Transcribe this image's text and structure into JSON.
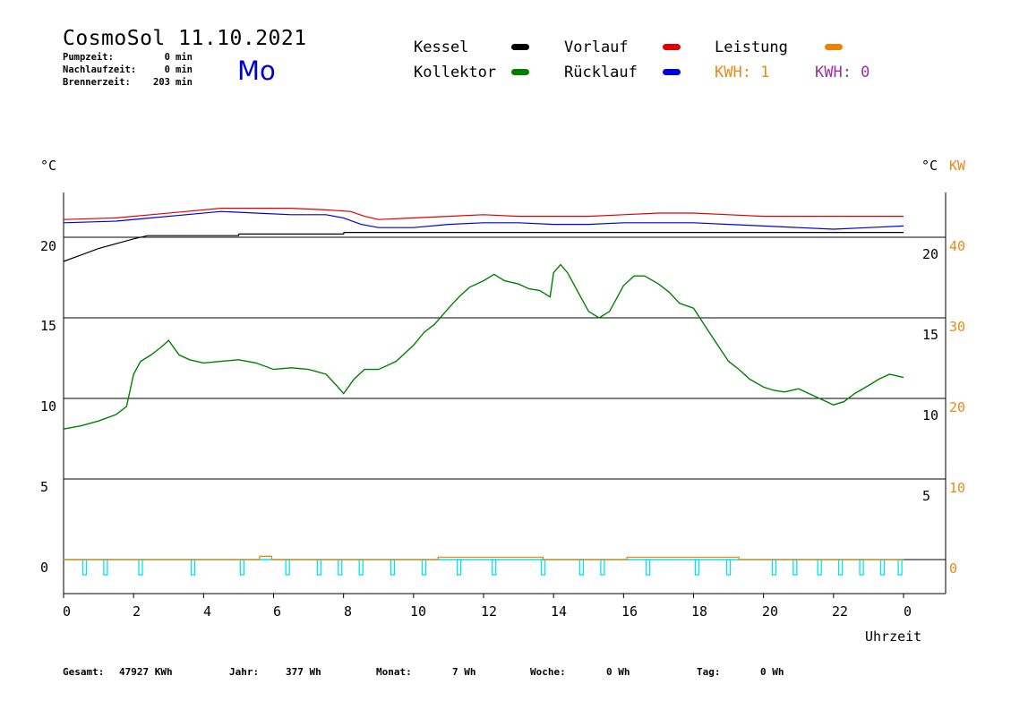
{
  "header": {
    "title": "CosmoSol 11.10.2021",
    "day": "Mo",
    "info": [
      {
        "label": "Pumpzeit:",
        "value": "0",
        "unit": "min"
      },
      {
        "label": "Nachlaufzeit:",
        "value": "0",
        "unit": "min"
      },
      {
        "label": "Brennerzeit:",
        "value": "203",
        "unit": "min"
      }
    ]
  },
  "legend": {
    "kessel": "Kessel",
    "kollektor": "Kollektor",
    "vorlauf": "Vorlauf",
    "ruecklauf": "Rücklauf",
    "leistung": "Leistung",
    "kwh1": "KWH: 1",
    "kwh2": "KWH: 0"
  },
  "colors": {
    "kessel": "#000000",
    "kollektor": "#008000",
    "vorlauf": "#e00000",
    "ruecklauf": "#0000e0",
    "leistung": "#f08000",
    "pump": "#00e5ee",
    "kwh2": "#993399"
  },
  "axes": {
    "left_unit": "°C",
    "right_unit": "°C",
    "right_unit2": "KW",
    "xlabel": "Uhrzeit",
    "left_ticks": [
      "0",
      "5",
      "10",
      "15",
      "20"
    ],
    "right_ticks": [
      "5",
      "10",
      "15",
      "20"
    ],
    "kw_ticks": [
      "0",
      "10",
      "20",
      "30",
      "40"
    ],
    "x_ticks": [
      "0",
      "2",
      "4",
      "6",
      "8",
      "10",
      "12",
      "14",
      "16",
      "18",
      "20",
      "22",
      "0"
    ]
  },
  "footer": [
    {
      "label": "Gesamt:",
      "value": "47927 KWh"
    },
    {
      "label": "Jahr:",
      "value": "377 Wh"
    },
    {
      "label": "Monat:",
      "value": "7 Wh"
    },
    {
      "label": "Woche:",
      "value": "0 Wh"
    },
    {
      "label": "Tag:",
      "value": "0 Wh"
    }
  ],
  "chart_data": {
    "type": "line",
    "xlabel": "Uhrzeit",
    "ylabel": "°C",
    "xlim": [
      0,
      24
    ],
    "ylim": [
      -2,
      23
    ],
    "grid": true,
    "series": [
      {
        "name": "Kollektor",
        "color": "#008000",
        "x": [
          0,
          0.5,
          1,
          1.5,
          1.8,
          2,
          2.2,
          2.5,
          2.8,
          3,
          3.3,
          3.6,
          4,
          4.5,
          5,
          5.5,
          6,
          6.5,
          7,
          7.5,
          7.8,
          8,
          8.3,
          8.6,
          9,
          9.5,
          10,
          10.3,
          10.6,
          11,
          11.3,
          11.6,
          12,
          12.3,
          12.6,
          13,
          13.3,
          13.6,
          13.9,
          14,
          14.2,
          14.4,
          14.7,
          15,
          15.3,
          15.6,
          16,
          16.3,
          16.6,
          17,
          17.3,
          17.6,
          18,
          18.3,
          18.6,
          19,
          19.3,
          19.6,
          20,
          20.3,
          20.6,
          21,
          21.5,
          22,
          22.3,
          22.6,
          23,
          23.3,
          23.6,
          24
        ],
        "y": [
          8.1,
          8.3,
          8.6,
          9,
          9.5,
          11.5,
          12.3,
          12.7,
          13.2,
          13.6,
          12.7,
          12.4,
          12.2,
          12.3,
          12.4,
          12.2,
          11.8,
          11.9,
          11.8,
          11.5,
          10.8,
          10.3,
          11.2,
          11.8,
          11.8,
          12.3,
          13.3,
          14.1,
          14.6,
          15.6,
          16.3,
          16.9,
          17.3,
          17.7,
          17.3,
          17.1,
          16.8,
          16.7,
          16.3,
          17.8,
          18.3,
          17.8,
          16.6,
          15.4,
          15,
          15.4,
          17,
          17.6,
          17.6,
          17.1,
          16.6,
          15.9,
          15.6,
          14.6,
          13.6,
          12.3,
          11.8,
          11.2,
          10.7,
          10.5,
          10.4,
          10.6,
          10.1,
          9.6,
          9.8,
          10.3,
          10.8,
          11.2,
          11.5,
          11.3
        ]
      },
      {
        "name": "Kessel",
        "color": "#000000",
        "x": [
          0,
          0.5,
          1,
          1.5,
          2,
          2.4,
          2.5,
          5,
          5.01,
          8,
          8.01,
          24
        ],
        "y": [
          18.5,
          18.9,
          19.3,
          19.6,
          19.9,
          20.1,
          20.1,
          20.1,
          20.2,
          20.2,
          20.3,
          20.3
        ]
      },
      {
        "name": "Vorlauf",
        "color": "#e00000",
        "x": [
          0,
          1.5,
          2.5,
          3.5,
          4.5,
          5.5,
          6.5,
          7.5,
          8.2,
          8.6,
          9,
          10,
          11,
          12,
          13,
          14,
          15,
          16,
          17,
          18,
          19,
          20,
          21,
          22,
          23,
          24
        ],
        "y": [
          21.1,
          21.2,
          21.4,
          21.6,
          21.8,
          21.8,
          21.8,
          21.7,
          21.6,
          21.3,
          21.1,
          21.2,
          21.3,
          21.4,
          21.3,
          21.3,
          21.3,
          21.4,
          21.5,
          21.5,
          21.4,
          21.3,
          21.3,
          21.3,
          21.3,
          21.3
        ]
      },
      {
        "name": "Rücklauf",
        "color": "#0000e0",
        "x": [
          0,
          1.5,
          2.5,
          3.5,
          4.5,
          5.5,
          6.5,
          7.5,
          8,
          8.5,
          9,
          10,
          11,
          12,
          13,
          14,
          15,
          16,
          17,
          18,
          19,
          20,
          21,
          22,
          23,
          24
        ],
        "y": [
          20.9,
          21,
          21.2,
          21.4,
          21.6,
          21.5,
          21.4,
          21.4,
          21.2,
          20.8,
          20.6,
          20.6,
          20.8,
          20.9,
          20.9,
          20.8,
          20.8,
          20.9,
          20.9,
          20.9,
          20.8,
          20.7,
          20.6,
          20.5,
          20.6,
          20.7
        ]
      },
      {
        "name": "Leistung",
        "color": "#f08000",
        "x": [
          0,
          5.6,
          5.6,
          5.95,
          5.95,
          10.7,
          10.7,
          13.7,
          13.7,
          16.1,
          16.1,
          19.3,
          19.3,
          24
        ],
        "y": [
          0,
          0,
          0.2,
          0.2,
          0,
          0,
          0.15,
          0.15,
          0,
          0,
          0.15,
          0.15,
          0,
          0
        ]
      }
    ],
    "pump_pulses": [
      0.6,
      1.2,
      2.2,
      3.7,
      5.1,
      6.4,
      7.3,
      7.9,
      8.5,
      9.4,
      10.3,
      11.3,
      12.3,
      13.7,
      14.8,
      15.4,
      16.7,
      18.1,
      19,
      20.3,
      20.9,
      21.6,
      22.2,
      22.8,
      23.4,
      23.9
    ]
  }
}
